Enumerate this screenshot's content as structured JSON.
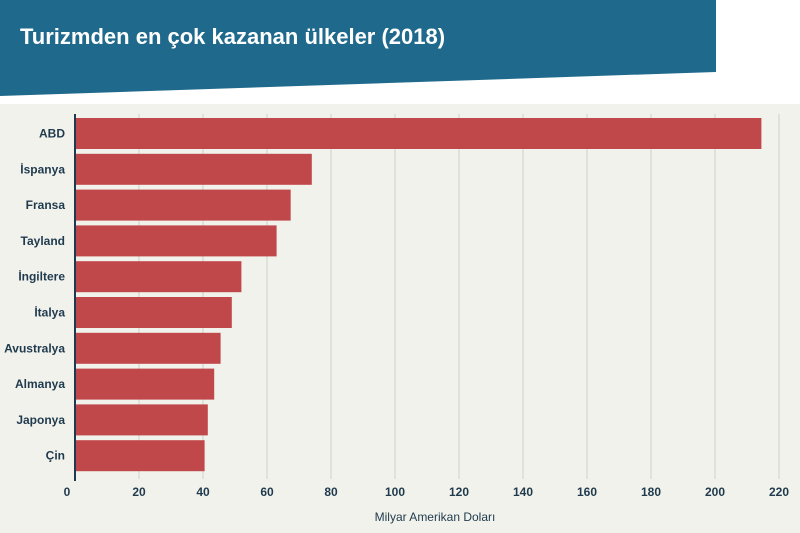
{
  "header": {
    "title": "Turizmden en çok kazanan ülkeler (2018)"
  },
  "colors": {
    "banner": "#1f6a8c",
    "bar": "#c0474a",
    "grid": "#c8d2cc",
    "axis": "#1f3a4d",
    "plot_background": "#f2f2ec"
  },
  "chart_data": {
    "type": "bar",
    "orientation": "horizontal",
    "title": "Turizmden en çok kazanan ülkeler (2018)",
    "categories": [
      "ABD",
      "İspanya",
      "Fransa",
      "Tayland",
      "İngiltere",
      "İtalya",
      "Avustralya",
      "Almanya",
      "Japonya",
      "Çin"
    ],
    "values": [
      214.5,
      74,
      67.4,
      63,
      52,
      49,
      45.5,
      43.5,
      41.5,
      40.5
    ],
    "xlabel": "Milyar Amerikan Doları",
    "ylabel": "",
    "xlim": [
      0,
      220
    ],
    "xticks": [
      0,
      20,
      40,
      60,
      80,
      100,
      120,
      140,
      160,
      180,
      200,
      220
    ],
    "grid": true
  }
}
